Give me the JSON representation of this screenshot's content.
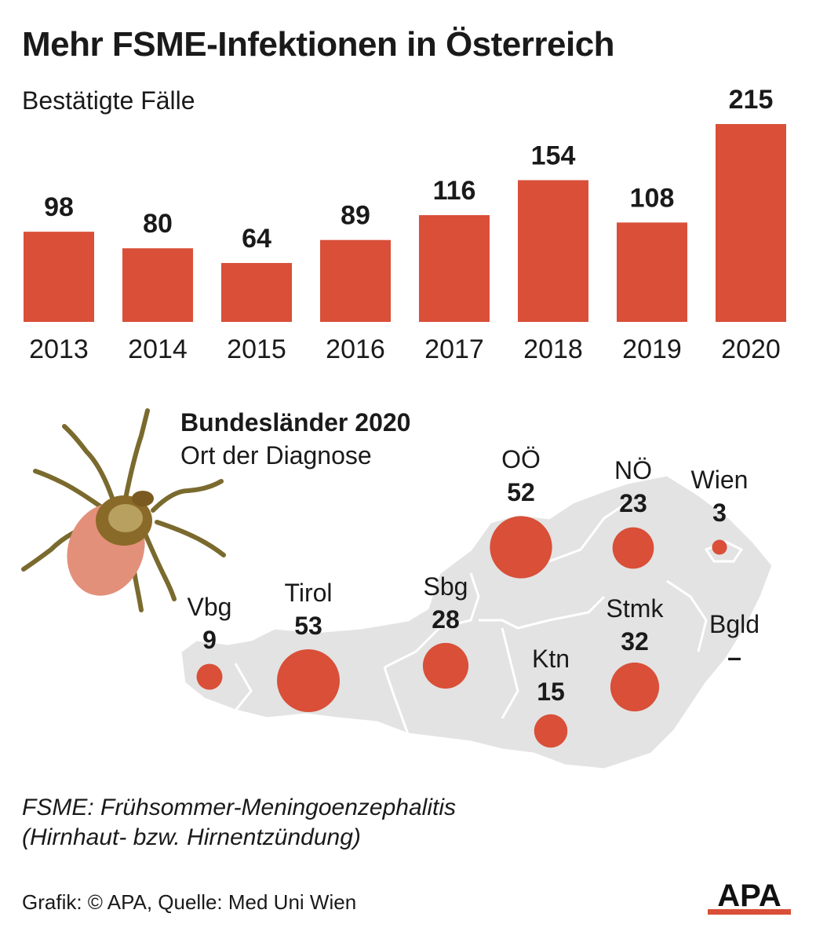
{
  "header": {
    "title": "Mehr FSME-Infektionen in Österreich",
    "subtitle": "Bestätigte Fälle"
  },
  "colors": {
    "accent": "#d94f38",
    "map_fill": "#e3e3e3",
    "map_border": "#ffffff",
    "text": "#1a1a1a"
  },
  "chart_data": [
    {
      "type": "bar",
      "categories": [
        "2013",
        "2014",
        "2015",
        "2016",
        "2017",
        "2018",
        "2019",
        "2020"
      ],
      "values": [
        98,
        80,
        64,
        89,
        116,
        154,
        108,
        215
      ],
      "value_labels": [
        "98",
        "80",
        "64",
        "89",
        "116",
        "154",
        "108",
        "215"
      ],
      "title": "Mehr FSME-Infektionen in Österreich",
      "subtitle": "Bestätigte Fälle",
      "ylim": [
        0,
        215
      ],
      "grid": false
    },
    {
      "type": "bubble-map",
      "title": "Bundesländer 2020",
      "subtitle": "Ort der Diagnose",
      "regions": [
        {
          "name": "Vbg",
          "label": "9",
          "value": 9
        },
        {
          "name": "Tirol",
          "label": "53",
          "value": 53
        },
        {
          "name": "Sbg",
          "label": "28",
          "value": 28
        },
        {
          "name": "OÖ",
          "label": "52",
          "value": 52
        },
        {
          "name": "NÖ",
          "label": "23",
          "value": 23
        },
        {
          "name": "Wien",
          "label": "3",
          "value": 3
        },
        {
          "name": "Ktn",
          "label": "15",
          "value": 15
        },
        {
          "name": "Stmk",
          "label": "32",
          "value": 32
        },
        {
          "name": "Bgld",
          "label": "–",
          "value": null
        }
      ]
    }
  ],
  "footnote": {
    "line1": "FSME: Frühsommer-Meningoenzephalitis",
    "line2": "(Hirnhaut- bzw. Hirnentzündung)"
  },
  "source": "Grafik: © APA, Quelle: Med Uni Wien",
  "logo_text": "APA",
  "icons": {
    "tick": "tick-icon",
    "logo": "apa-logo"
  }
}
